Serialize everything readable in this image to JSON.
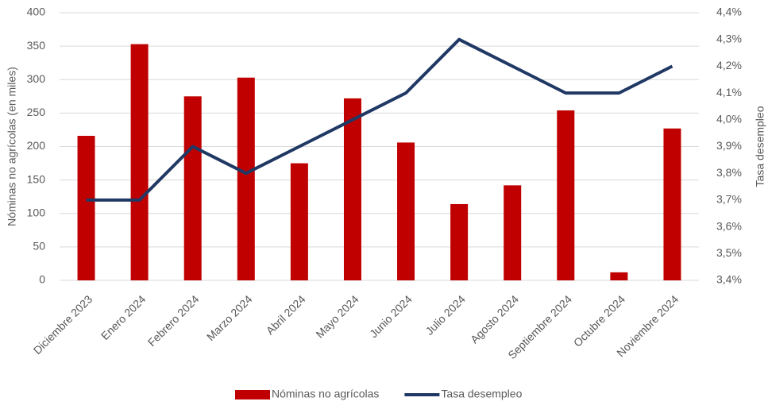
{
  "chart_data": {
    "type": "bar_line",
    "categories": [
      "Diciembre 2023",
      "Enero 2024",
      "Febrero 2024",
      "Marzo 2024",
      "Abril 2024",
      "Mayo 2024",
      "Junio 2024",
      "Julio 2024",
      "Agosto 2024",
      "Septiembre 2024",
      "Octubre 2024",
      "Noviembre 2024"
    ],
    "series": [
      {
        "name": "Nóminas no agrícolas",
        "type": "bar",
        "color": "#c00000",
        "values": [
          216,
          353,
          275,
          303,
          175,
          272,
          206,
          114,
          142,
          254,
          12,
          227
        ]
      },
      {
        "name": "Tasa desempleo",
        "type": "line",
        "axis": "y2",
        "color": "#203864",
        "values": [
          3.7,
          3.7,
          3.9,
          3.8,
          3.9,
          4.0,
          4.1,
          4.3,
          4.2,
          4.1,
          4.1,
          4.2
        ]
      }
    ],
    "ylabel": "Nóminas no agrícolas (en miles)",
    "y2label": "Tasa desempleo",
    "ylim": [
      0,
      400
    ],
    "yticks": [
      0,
      50,
      100,
      150,
      200,
      250,
      300,
      350,
      400
    ],
    "y2lim": [
      3.4,
      4.4
    ],
    "y2ticks": [
      {
        "value": 3.4,
        "label": "3,4%"
      },
      {
        "value": 3.5,
        "label": "3,5%"
      },
      {
        "value": 3.6,
        "label": "3,6%"
      },
      {
        "value": 3.7,
        "label": "3,7%"
      },
      {
        "value": 3.8,
        "label": "3,8%"
      },
      {
        "value": 3.9,
        "label": "3,9%"
      },
      {
        "value": 4.0,
        "label": "4,0%"
      },
      {
        "value": 4.1,
        "label": "4,1%"
      },
      {
        "value": 4.2,
        "label": "4,2%"
      },
      {
        "value": 4.3,
        "label": "4,3%"
      },
      {
        "value": 4.4,
        "label": "4,4%"
      }
    ],
    "grid": true,
    "legend": "bottom"
  }
}
